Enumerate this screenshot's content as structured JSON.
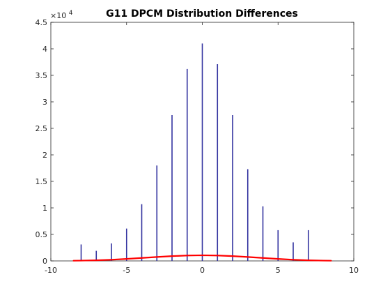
{
  "chart_data": {
    "type": "bar",
    "title": "G11 DPCM Distribution Differences",
    "xlabel": "",
    "ylabel": "",
    "xlim": [
      -10,
      10
    ],
    "ylim": [
      0,
      45000
    ],
    "grid": false,
    "xticks": [
      -10,
      -5,
      0,
      5,
      10
    ],
    "xtick_labels": [
      "-10",
      "-5",
      "0",
      "5",
      "10"
    ],
    "yticks": [
      0,
      5000,
      10000,
      15000,
      20000,
      25000,
      30000,
      35000,
      40000,
      45000
    ],
    "ytick_labels": [
      "0",
      "0.5",
      "1",
      "1.5",
      "2",
      "2.5",
      "3",
      "3.5",
      "4",
      "4.5"
    ],
    "y_multiplier": "×10",
    "y_multiplier_exponent": "4",
    "series": [
      {
        "style": "stem",
        "color": "#3333a0",
        "x": [
          -8,
          -7,
          -6,
          -5,
          -4,
          -3,
          -2,
          -1,
          0,
          1,
          2,
          3,
          4,
          5,
          6,
          7
        ],
        "values": [
          3100,
          1900,
          3300,
          6100,
          10700,
          18000,
          27500,
          36200,
          41000,
          37100,
          27500,
          17300,
          10300,
          5800,
          3500,
          5800
        ]
      },
      {
        "style": "curve",
        "color": "#ff0000",
        "x": [
          -8.5,
          -8,
          -7,
          -6,
          -5,
          -4,
          -3,
          -2,
          -1,
          0,
          1,
          2,
          3,
          4,
          5,
          6,
          7,
          8,
          8.5
        ],
        "values": [
          40,
          60,
          120,
          220,
          380,
          560,
          740,
          900,
          1020,
          1060,
          1020,
          900,
          740,
          560,
          380,
          220,
          120,
          60,
          40
        ]
      }
    ]
  }
}
